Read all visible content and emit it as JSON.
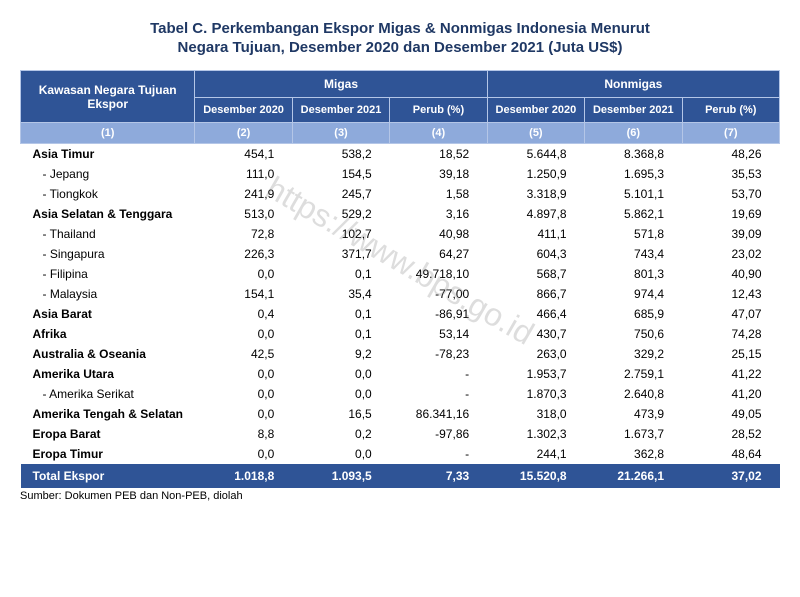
{
  "title_line1": "Tabel C.   Perkembangan Ekspor Migas & Nonmigas Indonesia Menurut",
  "title_line2": "Negara Tujuan,  Desember 2020 dan  Desember 2021 (Juta US$)",
  "watermark": "https://www.bps.go.id",
  "source": "Sumber: Dokumen PEB dan Non-PEB, diolah",
  "header": {
    "rowhead": "Kawasan Negara Tujuan Ekspor",
    "group_migas": "Migas",
    "group_nonmigas": "Nonmigas",
    "des2020": "Desember 2020",
    "des2021": "Desember 2021",
    "perub": "Perub (%)",
    "n1": "(1)",
    "n2": "(2)",
    "n3": "(3)",
    "n4": "(4)",
    "n5": "(5)",
    "n6": "(6)",
    "n7": "(7)"
  },
  "rows": [
    {
      "label": "Asia Timur",
      "indent": 0,
      "m20": "454,1",
      "m21": "538,2",
      "mp": "18,52",
      "n20": "5.644,8",
      "n21": "8.368,8",
      "np": "48,26"
    },
    {
      "label": "-    Jepang",
      "indent": 1,
      "m20": "111,0",
      "m21": "154,5",
      "mp": "39,18",
      "n20": "1.250,9",
      "n21": "1.695,3",
      "np": "35,53"
    },
    {
      "label": "-    Tiongkok",
      "indent": 1,
      "m20": "241,9",
      "m21": "245,7",
      "mp": "1,58",
      "n20": "3.318,9",
      "n21": "5.101,1",
      "np": "53,70"
    },
    {
      "label": "Asia Selatan & Tenggara",
      "indent": 0,
      "m20": "513,0",
      "m21": "529,2",
      "mp": "3,16",
      "n20": "4.897,8",
      "n21": "5.862,1",
      "np": "19,69"
    },
    {
      "label": "-    Thailand",
      "indent": 1,
      "m20": "72,8",
      "m21": "102,7",
      "mp": "40,98",
      "n20": "411,1",
      "n21": "571,8",
      "np": "39,09"
    },
    {
      "label": "-    Singapura",
      "indent": 1,
      "m20": "226,3",
      "m21": "371,7",
      "mp": "64,27",
      "n20": "604,3",
      "n21": "743,4",
      "np": "23,02"
    },
    {
      "label": "-    Filipina",
      "indent": 1,
      "m20": "0,0",
      "m21": "0,1",
      "mp": "49.718,10",
      "n20": "568,7",
      "n21": "801,3",
      "np": "40,90"
    },
    {
      "label": "-    Malaysia",
      "indent": 1,
      "m20": "154,1",
      "m21": "35,4",
      "mp": "-77,00",
      "n20": "866,7",
      "n21": "974,4",
      "np": "12,43"
    },
    {
      "label": "Asia Barat",
      "indent": 0,
      "m20": "0,4",
      "m21": "0,1",
      "mp": "-86,91",
      "n20": "466,4",
      "n21": "685,9",
      "np": "47,07"
    },
    {
      "label": "Afrika",
      "indent": 0,
      "m20": "0,0",
      "m21": "0,1",
      "mp": "53,14",
      "n20": "430,7",
      "n21": "750,6",
      "np": "74,28"
    },
    {
      "label": "Australia & Oseania",
      "indent": 0,
      "m20": "42,5",
      "m21": "9,2",
      "mp": "-78,23",
      "n20": "263,0",
      "n21": "329,2",
      "np": "25,15"
    },
    {
      "label": "Amerika Utara",
      "indent": 0,
      "m20": "0,0",
      "m21": "0,0",
      "mp": "-",
      "n20": "1.953,7",
      "n21": "2.759,1",
      "np": "41,22"
    },
    {
      "label": "-    Amerika Serikat",
      "indent": 1,
      "m20": "0,0",
      "m21": "0,0",
      "mp": "-",
      "n20": "1.870,3",
      "n21": "2.640,8",
      "np": "41,20"
    },
    {
      "label": "Amerika Tengah & Selatan",
      "indent": 0,
      "m20": "0,0",
      "m21": "16,5",
      "mp": "86.341,16",
      "n20": "318,0",
      "n21": "473,9",
      "np": "49,05"
    },
    {
      "label": "Eropa Barat",
      "indent": 0,
      "m20": "8,8",
      "m21": "0,2",
      "mp": "-97,86",
      "n20": "1.302,3",
      "n21": "1.673,7",
      "np": "28,52"
    },
    {
      "label": "Eropa Timur",
      "indent": 0,
      "m20": "0,0",
      "m21": "0,0",
      "mp": "-",
      "n20": "244,1",
      "n21": "362,8",
      "np": "48,64"
    }
  ],
  "total": {
    "label": "Total Ekspor",
    "m20": "1.018,8",
    "m21": "1.093,5",
    "mp": "7,33",
    "n20": "15.520,8",
    "n21": "21.266,1",
    "np": "37,02"
  }
}
